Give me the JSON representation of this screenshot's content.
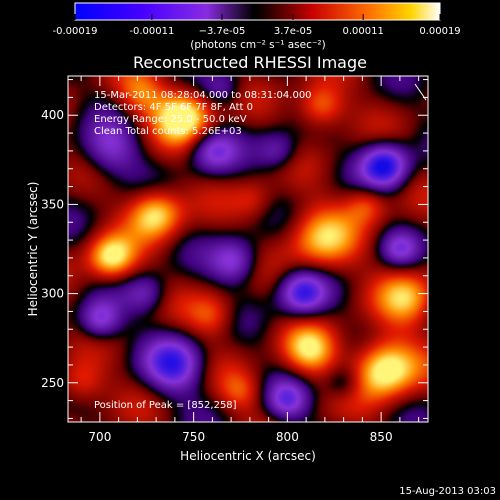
{
  "chart_data": {
    "type": "heatmap",
    "title": "Reconstructed RHESSI Image",
    "xlabel": "Heliocentric X (arcsec)",
    "ylabel": "Heliocentric Y (arcsec)",
    "xlim": [
      683,
      875
    ],
    "ylim": [
      228,
      422
    ],
    "x_ticks": [
      700,
      750,
      800,
      850
    ],
    "y_ticks": [
      250,
      300,
      350,
      400
    ],
    "colorbar": {
      "range": [
        -0.00019,
        0.00019
      ],
      "ticks": [
        "-0.00019",
        "-0.00011",
        "−3.7e-05",
        "3.7e-05",
        "0.00011",
        "0.00019"
      ],
      "units": "(photons cm⁻² s⁻¹ asec⁻²)"
    },
    "annotations": [
      "15-Mar-2011 08:28:04.000 to 08:31:04.000",
      "Detectors: 4F 5F 6F 7F 8F, Att 0",
      "Energy Range: 25.0 - 50.0 keV",
      "Clean    Total counts: 5.26E+03"
    ],
    "peak_label": "Position of Peak = [852,258]",
    "peak": [
      852,
      258
    ],
    "timestamp": "15-Aug-2013 03:03",
    "sources": [
      {
        "x": 745,
        "y": 400,
        "amp": 1.15,
        "sigma": 11
      },
      {
        "x": 722,
        "y": 412,
        "amp": 0.55,
        "sigma": 9
      },
      {
        "x": 730,
        "y": 345,
        "amp": 1.0,
        "sigma": 10
      },
      {
        "x": 706,
        "y": 320,
        "amp": 1.05,
        "sigma": 9
      },
      {
        "x": 818,
        "y": 330,
        "amp": 0.8,
        "sigma": 13
      },
      {
        "x": 852,
        "y": 258,
        "amp": 1.25,
        "sigma": 12
      },
      {
        "x": 812,
        "y": 268,
        "amp": 0.85,
        "sigma": 10
      },
      {
        "x": 760,
        "y": 288,
        "amp": 0.55,
        "sigma": 9
      },
      {
        "x": 818,
        "y": 405,
        "amp": 0.8,
        "sigma": 9
      },
      {
        "x": 864,
        "y": 298,
        "amp": 0.75,
        "sigma": 11
      },
      {
        "x": 690,
        "y": 250,
        "amp": 0.6,
        "sigma": 9
      },
      {
        "x": 782,
        "y": 352,
        "amp": 0.35,
        "sigma": 8
      },
      {
        "x": 842,
        "y": 350,
        "amp": 0.55,
        "sigma": 8
      },
      {
        "x": 775,
        "y": 245,
        "amp": 0.45,
        "sigma": 8
      },
      {
        "x": 705,
        "y": 380,
        "amp": -0.65,
        "sigma": 11
      },
      {
        "x": 852,
        "y": 372,
        "amp": -1.2,
        "sigma": 9
      },
      {
        "x": 808,
        "y": 300,
        "amp": -1.0,
        "sigma": 9
      },
      {
        "x": 740,
        "y": 260,
        "amp": -0.95,
        "sigma": 11
      },
      {
        "x": 700,
        "y": 285,
        "amp": -0.85,
        "sigma": 8
      },
      {
        "x": 772,
        "y": 318,
        "amp": -0.8,
        "sigma": 9
      },
      {
        "x": 760,
        "y": 380,
        "amp": -0.7,
        "sigma": 9
      },
      {
        "x": 800,
        "y": 240,
        "amp": -0.7,
        "sigma": 8
      },
      {
        "x": 795,
        "y": 380,
        "amp": -0.55,
        "sigma": 8
      },
      {
        "x": 860,
        "y": 325,
        "amp": -0.55,
        "sigma": 7
      },
      {
        "x": 725,
        "y": 300,
        "amp": -0.5,
        "sigma": 8
      },
      {
        "x": 765,
        "y": 415,
        "amp": -0.45,
        "sigma": 8
      },
      {
        "x": 830,
        "y": 250,
        "amp": -0.45,
        "sigma": 7
      }
    ]
  }
}
